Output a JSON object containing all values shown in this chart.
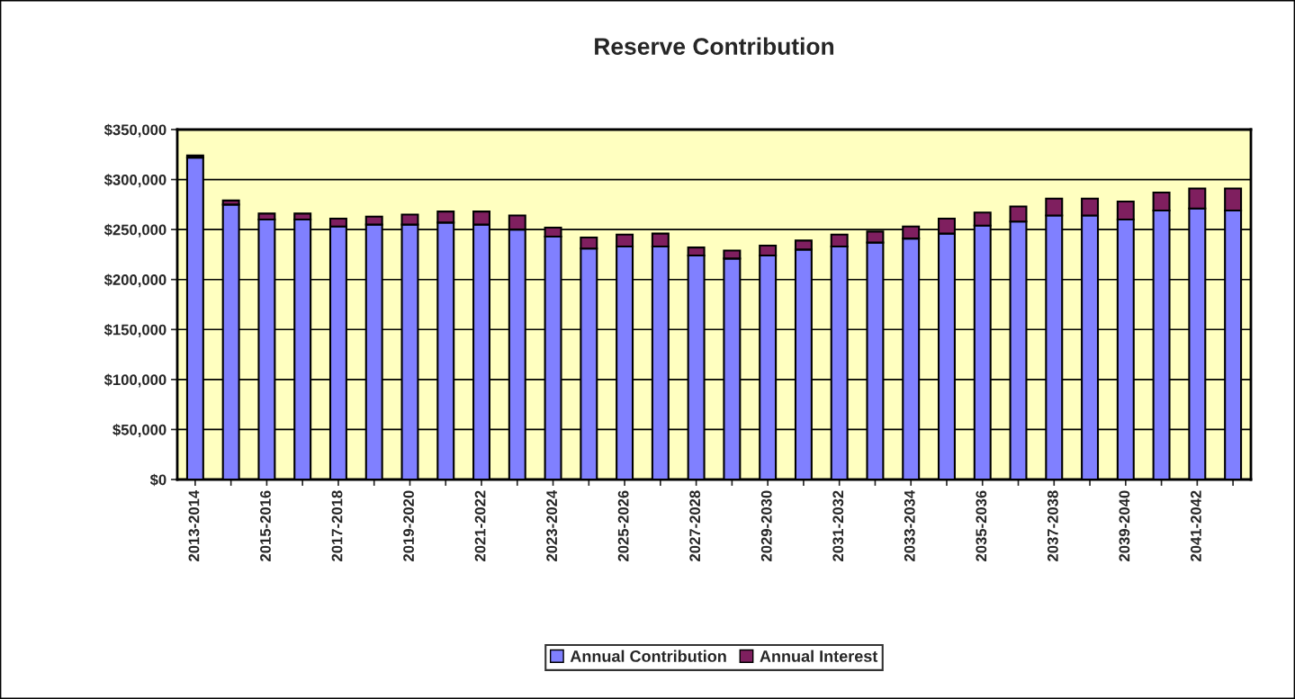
{
  "chart_data": {
    "type": "bar",
    "title": "Reserve Contribution",
    "stacked": true,
    "categories": [
      "2013-2014",
      null,
      "2015-2016",
      null,
      "2017-2018",
      null,
      "2019-2020",
      null,
      "2021-2022",
      null,
      "2023-2024",
      null,
      "2025-2026",
      null,
      "2027-2028",
      null,
      "2029-2030",
      null,
      "2031-2032",
      null,
      "2033-2034",
      null,
      "2035-2036",
      null,
      "2037-2038",
      null,
      "2039-2040",
      null,
      "2041-2042",
      null
    ],
    "series": [
      {
        "name": "Annual Contribution",
        "color": "#8080ff",
        "values": [
          322000,
          275000,
          260000,
          260000,
          253000,
          255000,
          255000,
          257000,
          255000,
          250000,
          243000,
          231000,
          233000,
          233000,
          224000,
          221000,
          224000,
          230000,
          233000,
          237000,
          241000,
          246000,
          254000,
          258000,
          264000,
          264000,
          260000,
          269000,
          271000,
          269000
        ]
      },
      {
        "name": "Annual Interest",
        "color": "#7f1f5f",
        "values": [
          2000,
          4000,
          6000,
          6000,
          8000,
          8000,
          10000,
          11000,
          13000,
          14000,
          9000,
          11000,
          12000,
          13000,
          8000,
          8000,
          10000,
          9000,
          12000,
          11000,
          12000,
          15000,
          13000,
          15000,
          17000,
          17000,
          18000,
          18000,
          20000,
          22000
        ]
      }
    ],
    "ylim": [
      0,
      350000
    ],
    "yticks": [
      {
        "value": 0,
        "label": "$0"
      },
      {
        "value": 50000,
        "label": "$50,000"
      },
      {
        "value": 100000,
        "label": "$100,000"
      },
      {
        "value": 150000,
        "label": "$150,000"
      },
      {
        "value": 200000,
        "label": "$200,000"
      },
      {
        "value": 250000,
        "label": "$250,000"
      },
      {
        "value": 300000,
        "label": "$300,000"
      },
      {
        "value": 350000,
        "label": "$350,000"
      }
    ],
    "grid": "y",
    "legend": "bottom"
  }
}
